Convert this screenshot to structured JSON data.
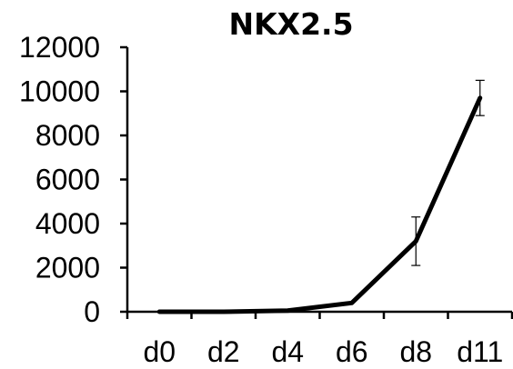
{
  "chart_data": {
    "type": "line",
    "title": "NKX2.5",
    "xlabel": "",
    "ylabel": "",
    "categories": [
      "d0",
      "d2",
      "d4",
      "d6",
      "d8",
      "d11"
    ],
    "series": [
      {
        "values": [
          0,
          0,
          50,
          400,
          3200,
          9700
        ],
        "error": [
          0,
          0,
          0,
          0,
          1100,
          800
        ]
      }
    ],
    "ylim": [
      0,
      12000
    ],
    "yticks": [
      0,
      2000,
      4000,
      6000,
      8000,
      10000,
      12000
    ],
    "ytick_labels": [
      "0",
      "2000",
      "4000",
      "6000",
      "8000",
      "10000",
      "12000"
    ],
    "grid": false,
    "legend": "none",
    "line_color": "#000000"
  }
}
